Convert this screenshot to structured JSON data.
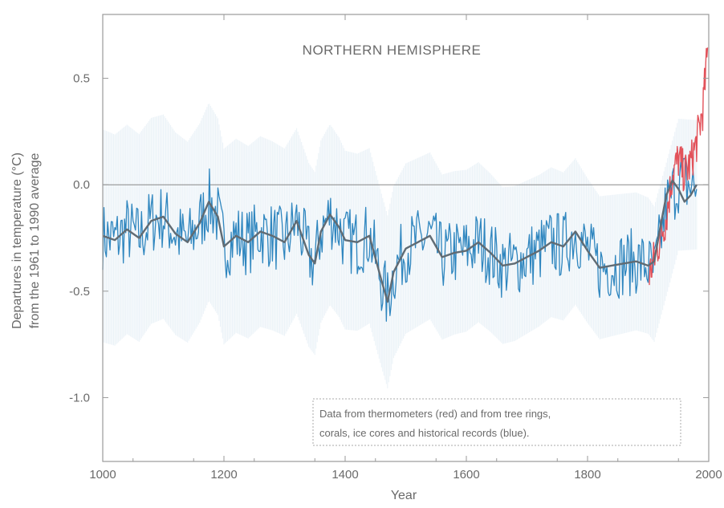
{
  "chart_data": {
    "type": "line",
    "title": "NORTHERN HEMISPHERE",
    "xlabel": "Year",
    "ylabel_lines": [
      "Departures in temperature (°C)",
      "from the 1961 to 1990 average"
    ],
    "xlim": [
      1000,
      2000
    ],
    "ylim": [
      -1.3,
      0.8
    ],
    "x_ticks": [
      1000,
      1200,
      1400,
      1600,
      1800,
      2000
    ],
    "y_ticks": [
      0.5,
      0.0,
      -0.5,
      -1.0
    ],
    "x_tick_labels": [
      "1000",
      "1200",
      "1400",
      "1600",
      "1800",
      "2000"
    ],
    "y_tick_labels": [
      "0.5",
      "0.0",
      "-0.5",
      "-1.0"
    ],
    "legend_lines": [
      "Data from thermometers (red) and from tree rings,",
      "corals, ice cores and historical records (blue)."
    ],
    "zero_line": 0.0,
    "colors": {
      "proxy": "#2f86bf",
      "uncertainty": "#c9dcea",
      "smooth": "#606b73",
      "instrumental": "#e2525a",
      "frame": "#9a9a9a",
      "zero_line": "#888888"
    },
    "series": [
      {
        "name": "tree rings, corals, ice cores and historical records (blue)",
        "role": "proxy",
        "x": [
          1000,
          1020,
          1040,
          1060,
          1080,
          1100,
          1120,
          1140,
          1160,
          1175,
          1190,
          1200,
          1220,
          1240,
          1260,
          1280,
          1300,
          1320,
          1340,
          1350,
          1360,
          1375,
          1390,
          1400,
          1420,
          1440,
          1460,
          1470,
          1480,
          1500,
          1520,
          1540,
          1560,
          1580,
          1600,
          1620,
          1640,
          1660,
          1680,
          1700,
          1720,
          1740,
          1760,
          1780,
          1800,
          1820,
          1840,
          1860,
          1880,
          1900,
          1910
        ],
        "values": [
          -0.24,
          -0.26,
          -0.21,
          -0.25,
          -0.17,
          -0.15,
          -0.23,
          -0.27,
          -0.18,
          -0.08,
          -0.15,
          -0.29,
          -0.24,
          -0.27,
          -0.22,
          -0.24,
          -0.27,
          -0.17,
          -0.33,
          -0.37,
          -0.22,
          -0.14,
          -0.2,
          -0.26,
          -0.27,
          -0.24,
          -0.45,
          -0.55,
          -0.41,
          -0.3,
          -0.27,
          -0.24,
          -0.34,
          -0.32,
          -0.31,
          -0.27,
          -0.32,
          -0.38,
          -0.37,
          -0.34,
          -0.31,
          -0.27,
          -0.29,
          -0.22,
          -0.31,
          -0.39,
          -0.38,
          -0.37,
          -0.36,
          -0.38,
          -0.42
        ]
      },
      {
        "name": "thermometers (red)",
        "role": "instrumental",
        "x": [
          1902,
          1910,
          1920,
          1930,
          1940,
          1950,
          1960,
          1970,
          1980,
          1990,
          1998
        ],
        "values": [
          -0.42,
          -0.35,
          -0.25,
          -0.15,
          0.05,
          0.12,
          0.05,
          0.1,
          0.2,
          0.35,
          0.62
        ]
      },
      {
        "name": "smoothed",
        "role": "smooth",
        "x": [
          1000,
          1020,
          1040,
          1060,
          1080,
          1100,
          1120,
          1140,
          1160,
          1175,
          1190,
          1200,
          1220,
          1240,
          1260,
          1280,
          1300,
          1320,
          1340,
          1350,
          1360,
          1375,
          1390,
          1400,
          1420,
          1440,
          1460,
          1470,
          1480,
          1500,
          1520,
          1540,
          1560,
          1580,
          1600,
          1620,
          1640,
          1660,
          1680,
          1700,
          1720,
          1740,
          1760,
          1780,
          1800,
          1820,
          1840,
          1860,
          1880,
          1900,
          1910,
          1920,
          1930,
          1940,
          1950,
          1960,
          1970,
          1980
        ],
        "values": [
          -0.24,
          -0.26,
          -0.21,
          -0.25,
          -0.17,
          -0.15,
          -0.23,
          -0.27,
          -0.18,
          -0.08,
          -0.15,
          -0.29,
          -0.24,
          -0.27,
          -0.22,
          -0.24,
          -0.27,
          -0.17,
          -0.33,
          -0.37,
          -0.22,
          -0.14,
          -0.2,
          -0.26,
          -0.27,
          -0.24,
          -0.45,
          -0.55,
          -0.41,
          -0.3,
          -0.27,
          -0.24,
          -0.34,
          -0.32,
          -0.31,
          -0.27,
          -0.32,
          -0.38,
          -0.37,
          -0.34,
          -0.31,
          -0.27,
          -0.29,
          -0.22,
          -0.31,
          -0.39,
          -0.38,
          -0.37,
          -0.36,
          -0.38,
          -0.36,
          -0.2,
          -0.05,
          0.02,
          -0.02,
          -0.08,
          -0.05,
          0.0
        ]
      }
    ]
  }
}
